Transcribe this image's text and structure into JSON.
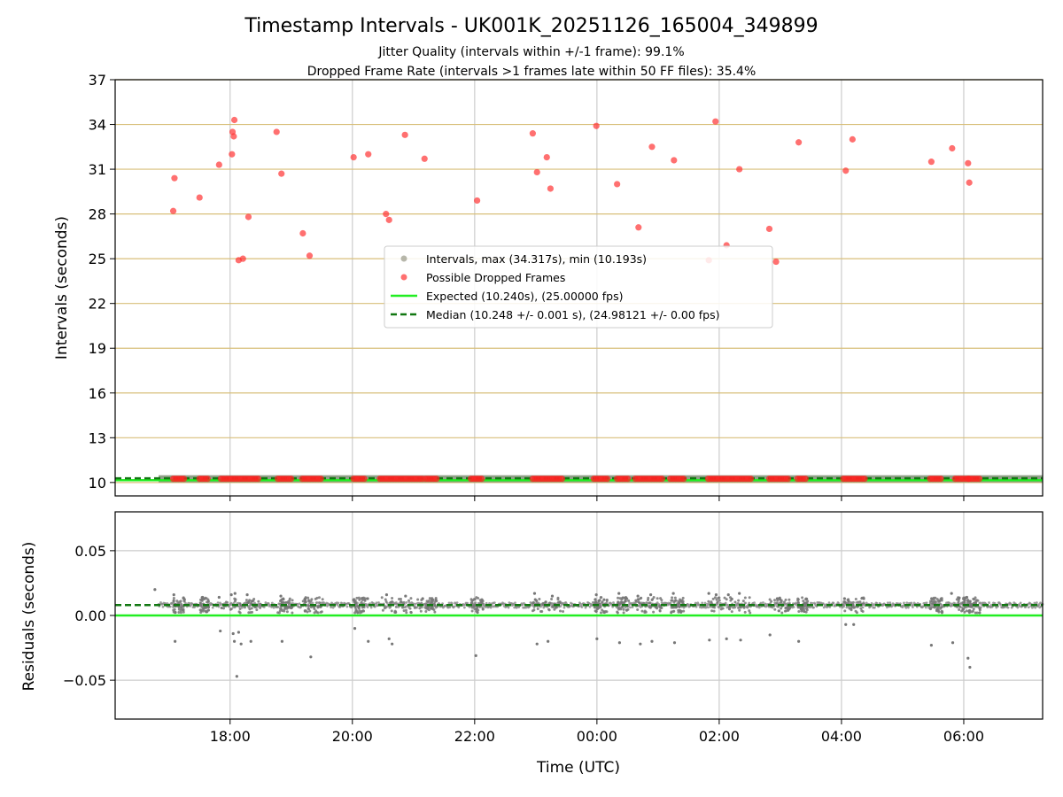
{
  "chart_data": [
    {
      "type": "scatter",
      "title": "Timestamp Intervals - UK001K_20251126_165004_349899",
      "subtitle_lines": [
        "Jitter Quality (intervals within +/-1 frame): 99.1%",
        "Dropped Frame Rate (intervals >1 frames late within 50 FF files): 35.4%"
      ],
      "xlabel": "",
      "ylabel": "Intervals (seconds)",
      "x_unit": "hours after 00:00 UTC (negative = previous day)",
      "xlim": [
        -7.88,
        7.29
      ],
      "ylim": [
        9.1,
        37.0
      ],
      "yticks": [
        10,
        13,
        16,
        19,
        22,
        25,
        28,
        31,
        34,
        37
      ],
      "ytick_labels": [
        "10",
        "13",
        "16",
        "19",
        "22",
        "25",
        "28",
        "31",
        "34",
        "37"
      ],
      "grid": true,
      "legend_location": "center-right",
      "legend": [
        {
          "label": "Intervals, max (34.317s), min (10.193s)",
          "kind": "marker",
          "color": "#999988"
        },
        {
          "label": "Possible Dropped Frames",
          "kind": "marker",
          "color": "#ff3333"
        },
        {
          "label": "Expected (10.240s), (25.00000 fps)",
          "kind": "line",
          "color": "#22ee22"
        },
        {
          "label": "Median (10.248 +/- 0.001 s), (24.98121 +/- 0.00 fps)",
          "kind": "dashed",
          "color": "#117711"
        }
      ],
      "series": [
        {
          "name": "Intervals",
          "color": "#999988",
          "x_range": [
            -7.17,
            7.29
          ],
          "y": 10.248
        },
        {
          "name": "Possible Dropped Frames",
          "color": "#ff3333",
          "points": [
            [
              -6.93,
              28.2
            ],
            [
              -6.91,
              30.4
            ],
            [
              -6.5,
              29.1
            ],
            [
              -6.18,
              31.3
            ],
            [
              -5.97,
              32.0
            ],
            [
              -5.96,
              33.5
            ],
            [
              -5.94,
              33.2
            ],
            [
              -5.93,
              34.3
            ],
            [
              -5.86,
              24.9
            ],
            [
              -5.79,
              25.0
            ],
            [
              -5.7,
              27.8
            ],
            [
              -5.24,
              33.5
            ],
            [
              -5.16,
              30.7
            ],
            [
              -4.81,
              26.7
            ],
            [
              -4.7,
              25.2
            ],
            [
              -3.98,
              31.8
            ],
            [
              -3.74,
              32.0
            ],
            [
              -3.45,
              28.0
            ],
            [
              -3.4,
              27.6
            ],
            [
              -3.14,
              33.3
            ],
            [
              -2.82,
              31.7
            ],
            [
              -1.96,
              28.9
            ],
            [
              -1.05,
              33.4
            ],
            [
              -0.98,
              30.8
            ],
            [
              -0.82,
              31.8
            ],
            [
              -0.76,
              29.7
            ],
            [
              -0.01,
              33.9
            ],
            [
              0.33,
              30.0
            ],
            [
              0.68,
              27.1
            ],
            [
              0.9,
              32.5
            ],
            [
              1.26,
              31.6
            ],
            [
              1.83,
              24.9
            ],
            [
              1.94,
              34.2
            ],
            [
              2.12,
              25.9
            ],
            [
              2.33,
              31.0
            ],
            [
              2.82,
              27.0
            ],
            [
              2.93,
              24.8
            ],
            [
              3.3,
              32.8
            ],
            [
              4.07,
              30.9
            ],
            [
              4.18,
              33.0
            ],
            [
              5.47,
              31.5
            ],
            [
              5.81,
              32.4
            ],
            [
              6.07,
              31.4
            ],
            [
              6.09,
              30.1
            ]
          ],
          "baseline_clusters": [
            [
              -6.93,
              -6.73
            ],
            [
              -6.5,
              -6.35
            ],
            [
              -6.15,
              -5.5
            ],
            [
              -5.22,
              -4.98
            ],
            [
              -4.82,
              -4.48
            ],
            [
              -3.98,
              -3.78
            ],
            [
              -3.55,
              -2.85
            ],
            [
              -2.8,
              -2.62
            ],
            [
              -2.06,
              -1.86
            ],
            [
              -1.05,
              -0.55
            ],
            [
              -0.05,
              0.17
            ],
            [
              0.33,
              0.52
            ],
            [
              0.63,
              1.08
            ],
            [
              1.2,
              1.42
            ],
            [
              1.82,
              2.52
            ],
            [
              2.82,
              3.16
            ],
            [
              3.28,
              3.45
            ],
            [
              4.03,
              4.38
            ],
            [
              5.45,
              5.65
            ],
            [
              5.86,
              6.1
            ],
            [
              6.08,
              6.27
            ]
          ]
        }
      ],
      "reference_lines": [
        {
          "name": "Expected",
          "y": 10.24,
          "style": "solid",
          "color": "#22ee22"
        },
        {
          "name": "Median",
          "y": 10.248,
          "style": "dashed",
          "color": "#117711"
        }
      ]
    },
    {
      "type": "scatter",
      "title": "",
      "xlabel": "Time (UTC)",
      "ylabel": "Residuals (seconds)",
      "xlim": [
        -7.88,
        7.29
      ],
      "ylim": [
        -0.08,
        0.08
      ],
      "yticks": [
        -0.05,
        0.0,
        0.05
      ],
      "ytick_labels": [
        "−0.05",
        "0.00",
        "0.05"
      ],
      "xticks": [
        -6,
        -4,
        -2,
        0,
        2,
        4,
        6
      ],
      "xtick_labels": [
        "18:00",
        "20:00",
        "22:00",
        "00:00",
        "02:00",
        "04:00",
        "06:00"
      ],
      "grid": true,
      "series": [
        {
          "name": "Residuals",
          "color": "#777777",
          "band_center": 0.008,
          "points": [
            [
              -7.23,
              0.02
            ],
            [
              -6.92,
              0.016
            ],
            [
              -6.9,
              -0.02
            ],
            [
              -6.45,
              0.014
            ],
            [
              -6.18,
              0.014
            ],
            [
              -6.16,
              -0.012
            ],
            [
              -5.98,
              0.016
            ],
            [
              -5.95,
              -0.014
            ],
            [
              -5.93,
              -0.02
            ],
            [
              -5.92,
              0.017
            ],
            [
              -5.89,
              -0.047
            ],
            [
              -5.86,
              -0.013
            ],
            [
              -5.82,
              -0.022
            ],
            [
              -5.72,
              0.016
            ],
            [
              -5.66,
              -0.02
            ],
            [
              -5.17,
              0.015
            ],
            [
              -5.15,
              -0.02
            ],
            [
              -4.77,
              0.013
            ],
            [
              -4.68,
              -0.032
            ],
            [
              -3.98,
              0.012
            ],
            [
              -3.96,
              -0.01
            ],
            [
              -3.75,
              0.013
            ],
            [
              -3.74,
              -0.02
            ],
            [
              -3.44,
              0.016
            ],
            [
              -3.4,
              -0.018
            ],
            [
              -3.35,
              -0.022
            ],
            [
              -3.13,
              0.015
            ],
            [
              -2.85,
              0.013
            ],
            [
              -1.98,
              -0.031
            ],
            [
              -1.02,
              0.017
            ],
            [
              -0.98,
              -0.022
            ],
            [
              -0.8,
              -0.02
            ],
            [
              -0.73,
              0.015
            ],
            [
              -0.01,
              0.016
            ],
            [
              0.0,
              -0.018
            ],
            [
              0.36,
              0.017
            ],
            [
              0.37,
              -0.021
            ],
            [
              0.67,
              0.015
            ],
            [
              0.71,
              -0.022
            ],
            [
              0.88,
              0.016
            ],
            [
              0.9,
              -0.02
            ],
            [
              1.25,
              0.017
            ],
            [
              1.27,
              -0.021
            ],
            [
              1.83,
              0.017
            ],
            [
              1.84,
              -0.019
            ],
            [
              1.95,
              0.016
            ],
            [
              2.12,
              -0.018
            ],
            [
              2.15,
              0.016
            ],
            [
              2.33,
              0.017
            ],
            [
              2.35,
              -0.019
            ],
            [
              2.83,
              -0.015
            ],
            [
              2.95,
              0.013
            ],
            [
              3.3,
              -0.02
            ],
            [
              4.05,
              0.013
            ],
            [
              4.07,
              -0.007
            ],
            [
              4.2,
              -0.007
            ],
            [
              5.47,
              -0.023
            ],
            [
              5.8,
              0.017
            ],
            [
              5.82,
              -0.021
            ],
            [
              6.05,
              0.014
            ],
            [
              6.07,
              -0.033
            ],
            [
              6.1,
              -0.04
            ]
          ]
        }
      ],
      "reference_lines": [
        {
          "name": "Expected",
          "y": 0.0,
          "style": "solid",
          "color": "#22ee22"
        },
        {
          "name": "Median",
          "y": 0.008,
          "style": "dashed",
          "color": "#117711"
        }
      ]
    }
  ]
}
